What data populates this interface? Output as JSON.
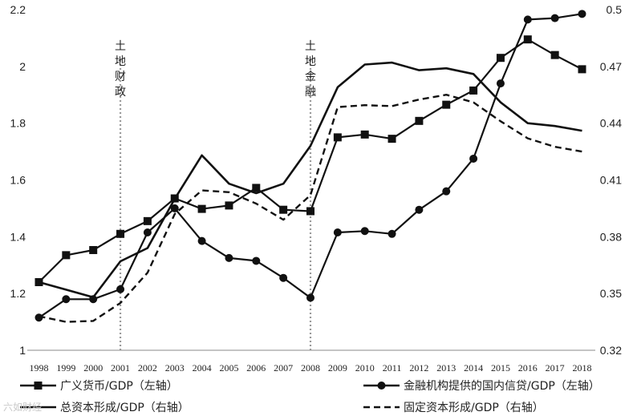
{
  "watermark": "六如财经",
  "chart_data": {
    "type": "line",
    "categories": [
      "1998",
      "1999",
      "2000",
      "2001",
      "2002",
      "2003",
      "2004",
      "2005",
      "2006",
      "2007",
      "2008",
      "2009",
      "2010",
      "2011",
      "2012",
      "2013",
      "2014",
      "2015",
      "2016",
      "2017",
      "2018"
    ],
    "y_left": {
      "ylim": [
        1,
        2.2
      ],
      "ticks": [
        "1",
        "1.2",
        "1.4",
        "1.6",
        "1.8",
        "2",
        "2.2"
      ]
    },
    "y_right": {
      "ylim": [
        0.32,
        0.5
      ],
      "ticks": [
        "0.32",
        "0.35",
        "0.38",
        "0.41",
        "0.44",
        "0.47",
        "0.5"
      ]
    },
    "annotations": [
      {
        "text": "土地财政",
        "x": "2001"
      },
      {
        "text": "土地金融",
        "x": "2008"
      }
    ],
    "legend_position": "bottom",
    "series": [
      {
        "name": "广义货币/GDP（左轴）",
        "axis": "left",
        "style": "solid",
        "marker": "square",
        "values": [
          1.24,
          1.335,
          1.353,
          1.41,
          1.455,
          1.535,
          1.498,
          1.51,
          1.572,
          1.495,
          1.49,
          1.75,
          1.76,
          1.745,
          1.808,
          1.865,
          1.915,
          2.03,
          2.095,
          2.04,
          1.99
        ]
      },
      {
        "name": "金融机构提供的国内信贷/GDP（左轴）",
        "axis": "left",
        "style": "solid",
        "marker": "circle",
        "values": [
          1.115,
          1.18,
          1.18,
          1.215,
          1.415,
          1.5,
          1.385,
          1.325,
          1.315,
          1.255,
          1.185,
          1.415,
          1.42,
          1.41,
          1.495,
          1.56,
          1.675,
          1.94,
          2.165,
          2.17,
          2.185
        ]
      },
      {
        "name": "总资本形成/GDP（右轴）",
        "axis": "right",
        "style": "solid",
        "marker": "none",
        "values": [
          0.356,
          0.352,
          0.348,
          0.367,
          0.374,
          0.4,
          0.423,
          0.408,
          0.403,
          0.408,
          0.428,
          0.459,
          0.471,
          0.472,
          0.468,
          0.469,
          0.466,
          0.451,
          0.44,
          0.4385,
          0.436
        ]
      },
      {
        "name": "固定资本形成/GDP（右轴）",
        "axis": "right",
        "style": "dashed",
        "marker": "none",
        "values": [
          0.338,
          0.335,
          0.3355,
          0.345,
          0.361,
          0.392,
          0.4045,
          0.4035,
          0.3975,
          0.389,
          0.402,
          0.4485,
          0.4495,
          0.449,
          0.4525,
          0.455,
          0.451,
          0.441,
          0.432,
          0.4275,
          0.425
        ]
      }
    ]
  }
}
